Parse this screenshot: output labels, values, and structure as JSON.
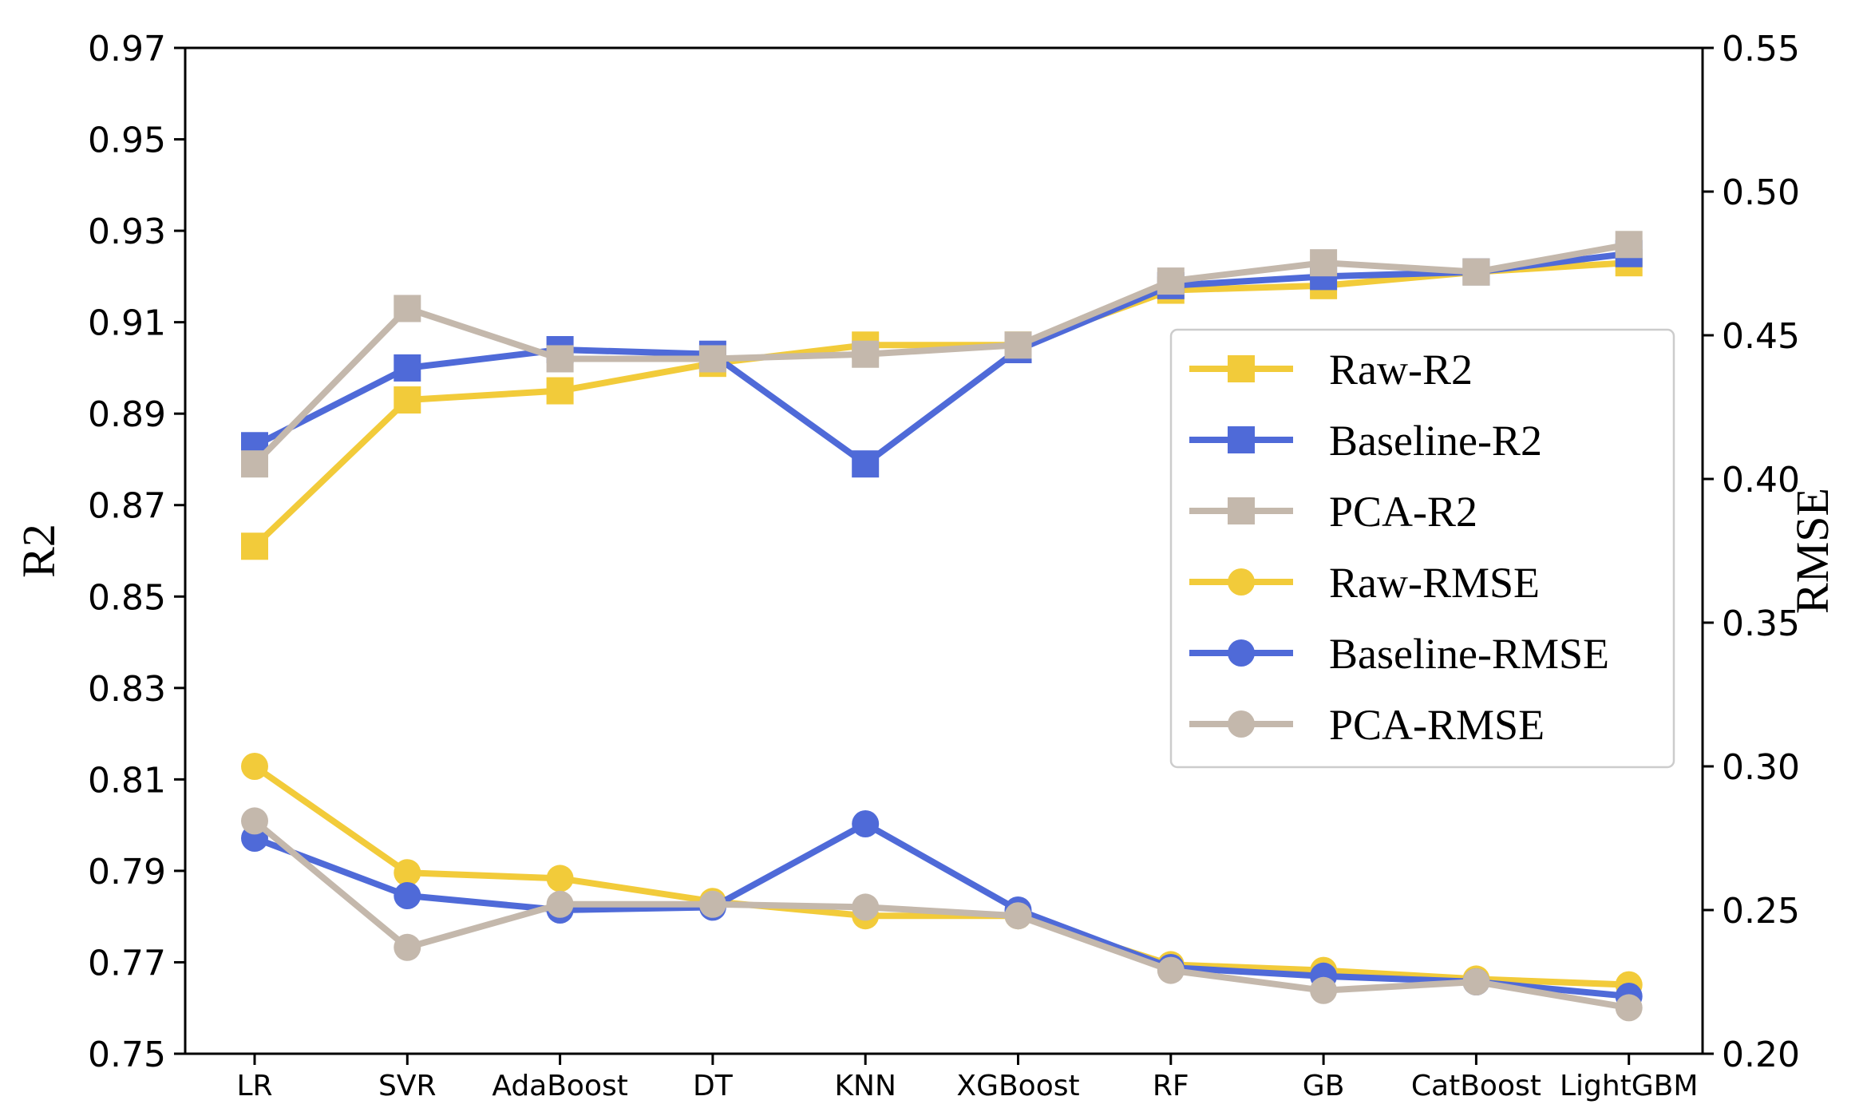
{
  "chart_data": {
    "type": "line",
    "categories": [
      "LR",
      "SVR",
      "AdaBoost",
      "DT",
      "KNN",
      "XGBoost",
      "RF",
      "GB",
      "CatBoost",
      "LightGBM"
    ],
    "y_left": {
      "label": "R2",
      "lim": [
        0.75,
        0.97
      ],
      "ticks": [
        "0.75",
        "0.77",
        "0.79",
        "0.81",
        "0.83",
        "0.85",
        "0.87",
        "0.89",
        "0.91",
        "0.93",
        "0.95",
        "0.97"
      ]
    },
    "y_right": {
      "label": "RMSE",
      "lim": [
        0.2,
        0.55
      ],
      "ticks": [
        "0.20",
        "0.25",
        "0.30",
        "0.35",
        "0.40",
        "0.45",
        "0.50",
        "0.55"
      ]
    },
    "series": [
      {
        "name": "Raw-R2",
        "axis": "left",
        "marker": "square",
        "color": "#f2cb3a",
        "values": [
          0.861,
          0.893,
          0.895,
          0.901,
          0.905,
          0.905,
          0.917,
          0.918,
          0.921,
          0.923
        ]
      },
      {
        "name": "Baseline-R2",
        "axis": "left",
        "marker": "square",
        "color": "#4f6ad8",
        "values": [
          0.883,
          0.9,
          0.904,
          0.903,
          0.879,
          0.904,
          0.918,
          0.92,
          0.921,
          0.925
        ]
      },
      {
        "name": "PCA-R2",
        "axis": "left",
        "marker": "square",
        "color": "#c4b8ac",
        "values": [
          0.879,
          0.913,
          0.902,
          0.902,
          0.903,
          0.905,
          0.919,
          0.923,
          0.921,
          0.927
        ]
      },
      {
        "name": "Raw-RMSE",
        "axis": "right",
        "marker": "circle",
        "color": "#f2cb3a",
        "values": [
          0.3,
          0.263,
          0.261,
          0.253,
          0.248,
          0.248,
          0.231,
          0.229,
          0.226,
          0.224
        ]
      },
      {
        "name": "Baseline-RMSE",
        "axis": "right",
        "marker": "circle",
        "color": "#4f6ad8",
        "values": [
          0.275,
          0.255,
          0.25,
          0.251,
          0.28,
          0.25,
          0.23,
          0.227,
          0.225,
          0.22
        ]
      },
      {
        "name": "PCA-RMSE",
        "axis": "right",
        "marker": "circle",
        "color": "#c4b8ac",
        "values": [
          0.281,
          0.237,
          0.252,
          0.252,
          0.251,
          0.248,
          0.229,
          0.222,
          0.225,
          0.216
        ]
      }
    ],
    "legend": {
      "placement": "center-right",
      "entries": [
        "Raw-R2",
        "Baseline-R2",
        "PCA-R2",
        "Raw-RMSE",
        "Baseline-RMSE",
        "PCA-RMSE"
      ]
    },
    "grid": false
  }
}
